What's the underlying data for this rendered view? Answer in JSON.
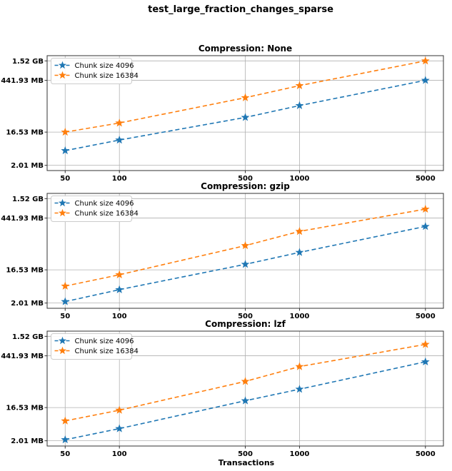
{
  "figure": {
    "suptitle": "test_large_fraction_changes_sparse",
    "xlabel": "Transactions",
    "xscale": "log",
    "yscale": "log",
    "grid": true,
    "legend_position": "upper left",
    "marker": "star",
    "linestyle": "dashed",
    "xlim": [
      39.7,
      6295
    ],
    "ylim_mb": [
      1.44,
      2117
    ],
    "xticks": [
      50,
      100,
      500,
      1000,
      5000
    ],
    "ytick_labels": [
      "1.52 GB",
      "441.93 MB",
      "16.53 MB",
      "2.01 MB"
    ],
    "ytick_values_mb": [
      1520,
      441.93,
      16.53,
      2.01
    ]
  },
  "colors": {
    "chunk4096": "#1f77b4",
    "chunk16384": "#ff7f0e",
    "grid": "#b0b0b0",
    "axis": "#333333",
    "legend_border": "#cccccc",
    "text": "#000000"
  },
  "chart_data": [
    {
      "type": "line",
      "title": "Compression: None",
      "x": [
        50,
        100,
        500,
        1000,
        5000
      ],
      "series": [
        {
          "name": "Chunk size 4096",
          "color_key": "chunk4096",
          "values_mb": [
            5.1,
            10.0,
            42,
            89,
            441.93
          ]
        },
        {
          "name": "Chunk size 16384",
          "color_key": "chunk16384",
          "values_mb": [
            16.53,
            29.5,
            147,
            316,
            1520
          ]
        }
      ]
    },
    {
      "type": "line",
      "title": "Compression: gzip",
      "x": [
        50,
        100,
        500,
        1000,
        5000
      ],
      "series": [
        {
          "name": "Chunk size 4096",
          "color_key": "chunk4096",
          "values_mb": [
            2.2,
            4.7,
            23.5,
            50,
            260
          ]
        },
        {
          "name": "Chunk size 16384",
          "color_key": "chunk16384",
          "values_mb": [
            5.9,
            12.1,
            77,
            190,
            780
          ]
        }
      ]
    },
    {
      "type": "line",
      "title": "Compression: lzf",
      "x": [
        50,
        100,
        500,
        1000,
        5000
      ],
      "series": [
        {
          "name": "Chunk size 4096",
          "color_key": "chunk4096",
          "values_mb": [
            2.15,
            4.35,
            25.5,
            53,
            302
          ]
        },
        {
          "name": "Chunk size 16384",
          "color_key": "chunk16384",
          "values_mb": [
            7.1,
            14.0,
            87,
            223,
            912
          ]
        }
      ]
    }
  ]
}
